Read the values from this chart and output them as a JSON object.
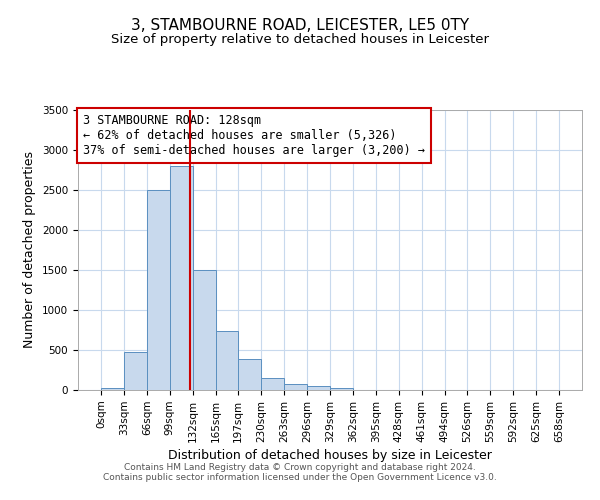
{
  "title": "3, STAMBOURNE ROAD, LEICESTER, LE5 0TY",
  "subtitle": "Size of property relative to detached houses in Leicester",
  "xlabel": "Distribution of detached houses by size in Leicester",
  "ylabel": "Number of detached properties",
  "footnote1": "Contains HM Land Registry data © Crown copyright and database right 2024.",
  "footnote2": "Contains public sector information licensed under the Open Government Licence v3.0.",
  "bin_edges": [
    0,
    33,
    66,
    99,
    132,
    165,
    197,
    230,
    263,
    296,
    329,
    362,
    395,
    428,
    461,
    494,
    526,
    559,
    592,
    625,
    658
  ],
  "bar_heights": [
    20,
    470,
    2500,
    2800,
    1500,
    740,
    390,
    150,
    80,
    50,
    30,
    0,
    0,
    0,
    0,
    0,
    0,
    0,
    0,
    0
  ],
  "bar_color": "#c8d9ed",
  "bar_edgecolor": "#5a8fc0",
  "grid_color": "#c8d9ed",
  "vline_x": 128,
  "vline_color": "#cc0000",
  "annotation_line1": "3 STAMBOURNE ROAD: 128sqm",
  "annotation_line2": "← 62% of detached houses are smaller (5,326)",
  "annotation_line3": "37% of semi-detached houses are larger (3,200) →",
  "annotation_box_facecolor": "#ffffff",
  "annotation_box_edgecolor": "#cc0000",
  "ylim": [
    0,
    3500
  ],
  "yticks": [
    0,
    500,
    1000,
    1500,
    2000,
    2500,
    3000,
    3500
  ],
  "background_color": "#ffffff",
  "title_fontsize": 11,
  "subtitle_fontsize": 9.5,
  "axis_label_fontsize": 9,
  "tick_fontsize": 7.5,
  "annotation_fontsize": 8.5,
  "footnote_fontsize": 6.5
}
